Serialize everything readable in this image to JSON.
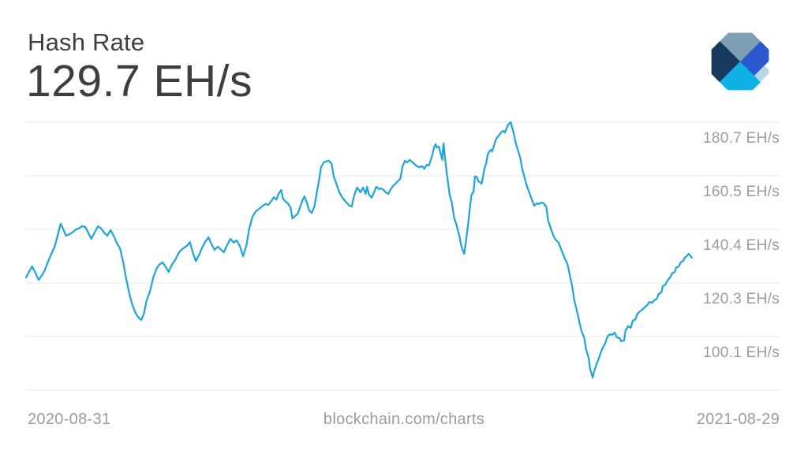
{
  "header": {
    "title": "Hash Rate",
    "value": "129.7 EH/s"
  },
  "logo": {
    "name": "blockchain-com-logo",
    "colors": {
      "slate": "#7e9fb4",
      "navy": "#17395e",
      "cyan": "#0fb1e6",
      "royal": "#2b57d0",
      "light": "#b9d6e7"
    }
  },
  "footer": {
    "start_date": "2020-08-31",
    "watermark": "blockchain.com/charts",
    "end_date": "2021-08-29"
  },
  "chart_data": {
    "type": "line",
    "title": "Hash Rate",
    "current_value_label": "129.7 EH/s",
    "unit": "EH/s",
    "x_range": [
      "2020-08-31",
      "2021-08-29"
    ],
    "grid_on": true,
    "legend": "none",
    "y_axis": {
      "tick_labels": [
        "180.7 EH/s",
        "160.5 EH/s",
        "140.4 EH/s",
        "120.3 EH/s",
        "100.1 EH/s"
      ],
      "tick_values": [
        180.7,
        160.5,
        140.4,
        120.3,
        100.1
      ],
      "grid_count": 6,
      "grid_step": 20.15,
      "labels_position": "right"
    },
    "line_color": "#1ea6dc",
    "grid_color": "#e7e7e7",
    "label_color": "#9b9b9b",
    "points": [
      [
        0,
        122.3
      ],
      [
        0.005,
        124.7
      ],
      [
        0.009,
        126.5
      ],
      [
        0.014,
        124.1
      ],
      [
        0.019,
        121.4
      ],
      [
        0.024,
        123.2
      ],
      [
        0.028,
        125
      ],
      [
        0.033,
        128.3
      ],
      [
        0.038,
        131.2
      ],
      [
        0.043,
        133.9
      ],
      [
        0.047,
        137.7
      ],
      [
        0.052,
        142.5
      ],
      [
        0.056,
        140.4
      ],
      [
        0.06,
        138
      ],
      [
        0.065,
        138.6
      ],
      [
        0.07,
        139.3
      ],
      [
        0.075,
        140.4
      ],
      [
        0.079,
        140.7
      ],
      [
        0.084,
        141.6
      ],
      [
        0.089,
        141.3
      ],
      [
        0.094,
        138.9
      ],
      [
        0.098,
        136.8
      ],
      [
        0.103,
        139.2
      ],
      [
        0.108,
        141.6
      ],
      [
        0.113,
        140.7
      ],
      [
        0.117,
        139.2
      ],
      [
        0.122,
        138
      ],
      [
        0.127,
        140.1
      ],
      [
        0.132,
        137.7
      ],
      [
        0.136,
        135.4
      ],
      [
        0.141,
        133.3
      ],
      [
        0.146,
        128
      ],
      [
        0.15,
        122.3
      ],
      [
        0.155,
        116.4
      ],
      [
        0.16,
        111.7
      ],
      [
        0.165,
        108.7
      ],
      [
        0.169,
        107.2
      ],
      [
        0.173,
        106.3
      ],
      [
        0.177,
        108.7
      ],
      [
        0.181,
        113.7
      ],
      [
        0.186,
        117
      ],
      [
        0.191,
        122.3
      ],
      [
        0.196,
        125.6
      ],
      [
        0.2,
        127.1
      ],
      [
        0.205,
        128
      ],
      [
        0.21,
        126.2
      ],
      [
        0.214,
        124.4
      ],
      [
        0.219,
        127.1
      ],
      [
        0.224,
        128.9
      ],
      [
        0.229,
        131.5
      ],
      [
        0.233,
        132.7
      ],
      [
        0.238,
        133.6
      ],
      [
        0.243,
        134.5
      ],
      [
        0.246,
        135.7
      ],
      [
        0.251,
        131.2
      ],
      [
        0.255,
        128.5
      ],
      [
        0.26,
        130.9
      ],
      [
        0.264,
        133.3
      ],
      [
        0.269,
        135.7
      ],
      [
        0.274,
        137.4
      ],
      [
        0.278,
        135.1
      ],
      [
        0.283,
        132.7
      ],
      [
        0.288,
        133.9
      ],
      [
        0.293,
        132.7
      ],
      [
        0.297,
        131.8
      ],
      [
        0.302,
        134.5
      ],
      [
        0.307,
        136.8
      ],
      [
        0.312,
        135.4
      ],
      [
        0.316,
        136.3
      ],
      [
        0.321,
        134.2
      ],
      [
        0.326,
        130.3
      ],
      [
        0.331,
        134.5
      ],
      [
        0.335,
        140.4
      ],
      [
        0.34,
        145.1
      ],
      [
        0.345,
        147.2
      ],
      [
        0.35,
        148.1
      ],
      [
        0.354,
        149
      ],
      [
        0.359,
        149.9
      ],
      [
        0.364,
        149.6
      ],
      [
        0.369,
        151.3
      ],
      [
        0.372,
        152.5
      ],
      [
        0.376,
        151.6
      ],
      [
        0.379,
        153.7
      ],
      [
        0.383,
        155.2
      ],
      [
        0.386,
        151.9
      ],
      [
        0.39,
        150.8
      ],
      [
        0.393,
        150.2
      ],
      [
        0.397,
        148.7
      ],
      [
        0.4,
        144.5
      ],
      [
        0.404,
        145.4
      ],
      [
        0.408,
        146.3
      ],
      [
        0.411,
        148.4
      ],
      [
        0.415,
        151.3
      ],
      [
        0.418,
        152.8
      ],
      [
        0.422,
        150.2
      ],
      [
        0.425,
        147.5
      ],
      [
        0.429,
        146.6
      ],
      [
        0.433,
        149
      ],
      [
        0.436,
        153.4
      ],
      [
        0.44,
        159
      ],
      [
        0.443,
        163.8
      ],
      [
        0.447,
        165.6
      ],
      [
        0.45,
        165.9
      ],
      [
        0.455,
        166.2
      ],
      [
        0.459,
        165
      ],
      [
        0.462,
        160.3
      ],
      [
        0.466,
        157.6
      ],
      [
        0.47,
        154.6
      ],
      [
        0.475,
        152.3
      ],
      [
        0.479,
        151.1
      ],
      [
        0.482,
        150.2
      ],
      [
        0.486,
        149.3
      ],
      [
        0.489,
        149
      ],
      [
        0.493,
        153.4
      ],
      [
        0.497,
        156.1
      ],
      [
        0.5,
        155.2
      ],
      [
        0.502,
        154.3
      ],
      [
        0.506,
        156.1
      ],
      [
        0.51,
        153.7
      ],
      [
        0.512,
        156.4
      ],
      [
        0.515,
        153.4
      ],
      [
        0.519,
        152.3
      ],
      [
        0.523,
        154.6
      ],
      [
        0.526,
        156.4
      ],
      [
        0.53,
        155.5
      ],
      [
        0.533,
        155.8
      ],
      [
        0.537,
        155.2
      ],
      [
        0.54,
        154.3
      ],
      [
        0.544,
        153.7
      ],
      [
        0.547,
        155.2
      ],
      [
        0.551,
        156.7
      ],
      [
        0.555,
        157.6
      ],
      [
        0.558,
        158.5
      ],
      [
        0.562,
        159.4
      ],
      [
        0.565,
        163.8
      ],
      [
        0.569,
        166.2
      ],
      [
        0.572,
        165.6
      ],
      [
        0.576,
        166.5
      ],
      [
        0.579,
        165.9
      ],
      [
        0.583,
        165
      ],
      [
        0.587,
        164.1
      ],
      [
        0.591,
        163.8
      ],
      [
        0.595,
        164.1
      ],
      [
        0.598,
        163.2
      ],
      [
        0.602,
        164.7
      ],
      [
        0.605,
        164.4
      ],
      [
        0.609,
        167.4
      ],
      [
        0.613,
        171.5
      ],
      [
        0.615,
        172.4
      ],
      [
        0.617,
        171.2
      ],
      [
        0.62,
        171.5
      ],
      [
        0.622,
        169.4
      ],
      [
        0.625,
        166.5
      ],
      [
        0.626,
        170.3
      ],
      [
        0.627,
        172.7
      ],
      [
        0.629,
        167.4
      ],
      [
        0.632,
        161.1
      ],
      [
        0.634,
        157.3
      ],
      [
        0.636,
        153.4
      ],
      [
        0.639,
        150.8
      ],
      [
        0.641,
        147.8
      ],
      [
        0.643,
        144.5
      ],
      [
        0.646,
        142.5
      ],
      [
        0.648,
        140.4
      ],
      [
        0.651,
        137.7
      ],
      [
        0.653,
        134.8
      ],
      [
        0.655,
        133
      ],
      [
        0.658,
        131.2
      ],
      [
        0.66,
        134.8
      ],
      [
        0.662,
        138.6
      ],
      [
        0.665,
        145.1
      ],
      [
        0.667,
        149.6
      ],
      [
        0.669,
        153.4
      ],
      [
        0.672,
        154.6
      ],
      [
        0.674,
        160.3
      ],
      [
        0.677,
        160
      ],
      [
        0.679,
        158.5
      ],
      [
        0.681,
        158.2
      ],
      [
        0.684,
        157.6
      ],
      [
        0.686,
        160
      ],
      [
        0.688,
        162.9
      ],
      [
        0.691,
        165.3
      ],
      [
        0.693,
        168.3
      ],
      [
        0.695,
        169.4
      ],
      [
        0.698,
        170.3
      ],
      [
        0.7,
        169.7
      ],
      [
        0.703,
        172.1
      ],
      [
        0.705,
        173.9
      ],
      [
        0.707,
        174.8
      ],
      [
        0.71,
        175.7
      ],
      [
        0.713,
        176.8
      ],
      [
        0.717,
        177.4
      ],
      [
        0.719,
        176.8
      ],
      [
        0.722,
        178.6
      ],
      [
        0.724,
        179.8
      ],
      [
        0.728,
        180.7
      ],
      [
        0.73,
        178.6
      ],
      [
        0.732,
        176.8
      ],
      [
        0.735,
        173.3
      ],
      [
        0.738,
        170.6
      ],
      [
        0.742,
        167.4
      ],
      [
        0.745,
        163.2
      ],
      [
        0.749,
        159.4
      ],
      [
        0.752,
        156.7
      ],
      [
        0.756,
        154
      ],
      [
        0.76,
        151.3
      ],
      [
        0.763,
        149.3
      ],
      [
        0.767,
        150.2
      ],
      [
        0.77,
        149.9
      ],
      [
        0.774,
        150.5
      ],
      [
        0.777,
        150.2
      ],
      [
        0.781,
        149
      ],
      [
        0.784,
        143.7
      ],
      [
        0.788,
        140.7
      ],
      [
        0.791,
        138.6
      ],
      [
        0.795,
        136.5
      ],
      [
        0.799,
        135.7
      ],
      [
        0.802,
        133.9
      ],
      [
        0.806,
        131.2
      ],
      [
        0.809,
        129.4
      ],
      [
        0.813,
        127.4
      ],
      [
        0.816,
        123.8
      ],
      [
        0.82,
        119.1
      ],
      [
        0.823,
        114
      ],
      [
        0.827,
        109.9
      ],
      [
        0.831,
        105.4
      ],
      [
        0.834,
        102.2
      ],
      [
        0.838,
        99.8
      ],
      [
        0.841,
        95.3
      ],
      [
        0.845,
        91.8
      ],
      [
        0.847,
        87.9
      ],
      [
        0.851,
        84.6
      ],
      [
        0.853,
        87
      ],
      [
        0.857,
        90
      ],
      [
        0.86,
        91.8
      ],
      [
        0.863,
        94.1
      ],
      [
        0.866,
        95.9
      ],
      [
        0.87,
        97.7
      ],
      [
        0.873,
        100.1
      ],
      [
        0.877,
        101
      ],
      [
        0.88,
        100.7
      ],
      [
        0.884,
        101.6
      ],
      [
        0.887,
        99.8
      ],
      [
        0.891,
        99.5
      ],
      [
        0.894,
        98.3
      ],
      [
        0.898,
        98.6
      ],
      [
        0.9,
        102.2
      ],
      [
        0.904,
        104
      ],
      [
        0.908,
        103.4
      ],
      [
        0.911,
        106
      ],
      [
        0.915,
        106.6
      ],
      [
        0.918,
        108.7
      ],
      [
        0.922,
        109.6
      ],
      [
        0.925,
        110.2
      ],
      [
        0.929,
        111.1
      ],
      [
        0.933,
        112
      ],
      [
        0.936,
        113.1
      ],
      [
        0.94,
        112.8
      ],
      [
        0.943,
        113.7
      ],
      [
        0.947,
        114.3
      ],
      [
        0.95,
        116.1
      ],
      [
        0.954,
        116.7
      ],
      [
        0.956,
        119
      ],
      [
        0.96,
        119.6
      ],
      [
        0.963,
        121.1
      ],
      [
        0.967,
        122.3
      ],
      [
        0.97,
        123.8
      ],
      [
        0.974,
        124.4
      ],
      [
        0.976,
        125.9
      ],
      [
        0.98,
        126.5
      ],
      [
        0.983,
        128
      ],
      [
        0.987,
        128.6
      ],
      [
        0.989,
        129.7
      ],
      [
        0.993,
        130.6
      ],
      [
        0.995,
        131.2
      ],
      [
        0.998,
        130.3
      ],
      [
        1,
        129.7
      ]
    ],
    "layout": {
      "plot_left": 33,
      "plot_right": 877,
      "grid_right": 988,
      "grid_top_y": 155,
      "grid_spacing": 68
    }
  }
}
